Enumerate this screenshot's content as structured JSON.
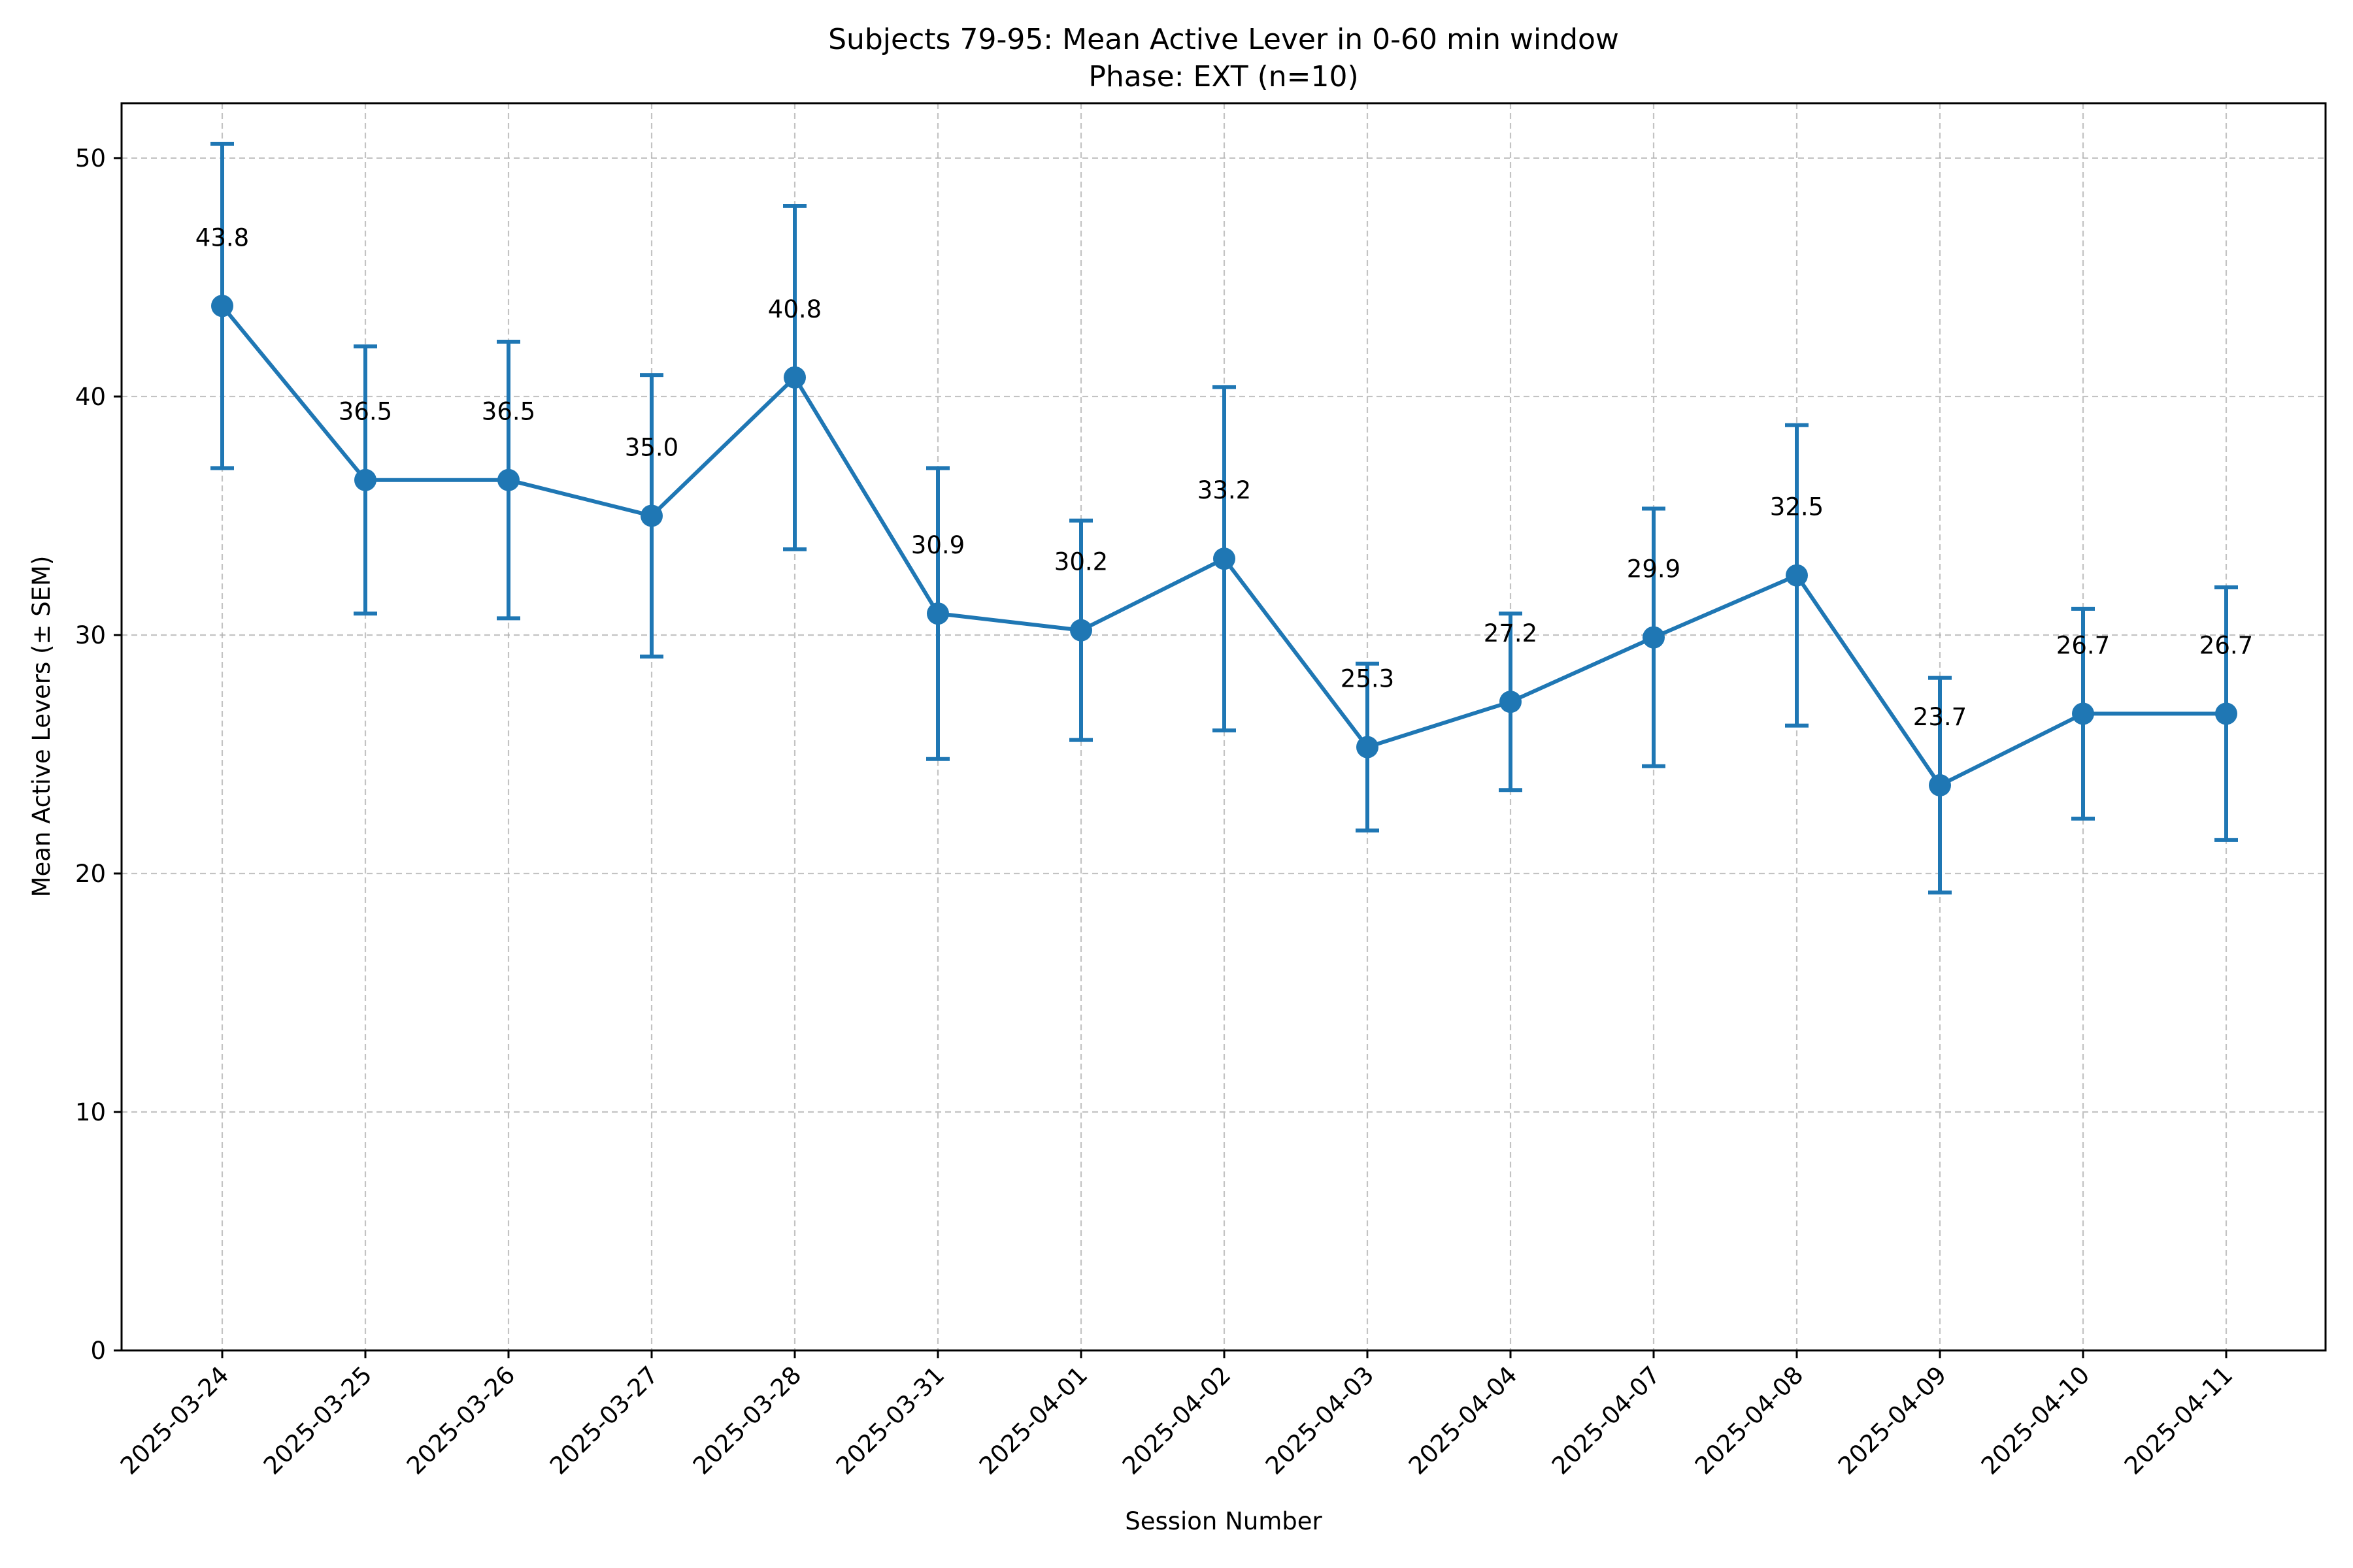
{
  "chart_data": {
    "type": "line",
    "title": "Subjects 79-95: Mean Active Lever in 0-60 min window",
    "subtitle": "Phase: EXT (n=10)",
    "xlabel": "Session Number",
    "ylabel": "Mean Active Levers (± SEM)",
    "ylim": [
      0,
      52.3
    ],
    "yticks": [
      0,
      10,
      20,
      30,
      40,
      50
    ],
    "grid": true,
    "color": "#1f77b4",
    "categories": [
      "2025-03-24",
      "2025-03-25",
      "2025-03-26",
      "2025-03-27",
      "2025-03-28",
      "2025-03-31",
      "2025-04-01",
      "2025-04-02",
      "2025-04-03",
      "2025-04-04",
      "2025-04-07",
      "2025-04-08",
      "2025-04-09",
      "2025-04-10",
      "2025-04-11"
    ],
    "values": [
      43.8,
      36.5,
      36.5,
      35.0,
      40.8,
      30.9,
      30.2,
      33.2,
      25.3,
      27.2,
      29.9,
      32.5,
      23.7,
      26.7,
      26.7
    ],
    "sem": [
      6.8,
      5.6,
      5.8,
      5.9,
      7.2,
      6.1,
      4.6,
      7.2,
      3.5,
      3.7,
      5.4,
      6.3,
      4.5,
      4.4,
      5.3
    ],
    "labels": [
      "43.8",
      "36.5",
      "36.5",
      "35.0",
      "40.8",
      "30.9",
      "30.2",
      "33.2",
      "25.3",
      "27.2",
      "29.9",
      "32.5",
      "23.7",
      "26.7",
      "26.7"
    ]
  }
}
